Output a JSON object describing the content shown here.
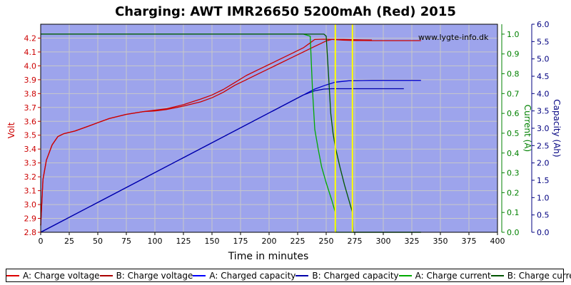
{
  "chart_data": {
    "type": "line",
    "title": "Charging: AWT IMR26650 5200mAh (Red) 2015",
    "watermark": "www.lygte-info.dk",
    "xlabel": "Time in minutes",
    "ylabel_left": "Volt",
    "ylabel_right1": "Current (A)",
    "ylabel_right2": "Capacity (Ah)",
    "xlim": [
      0,
      400
    ],
    "ylim_left": [
      2.8,
      4.3
    ],
    "ylim_right1": [
      0,
      1.05
    ],
    "ylim_right2": [
      0,
      6.0
    ],
    "x_ticks": [
      "0",
      "25",
      "50",
      "75",
      "100",
      "125",
      "150",
      "175",
      "200",
      "225",
      "250",
      "275",
      "300",
      "325",
      "350",
      "375",
      "400"
    ],
    "y_ticks_left": [
      "2.8",
      "2.9",
      "3.0",
      "3.1",
      "3.2",
      "3.3",
      "3.4",
      "3.5",
      "3.6",
      "3.7",
      "3.8",
      "3.9",
      "4.0",
      "4.1",
      "4.2"
    ],
    "y_ticks_right1": [
      "0.0",
      "0.1",
      "0.2",
      "0.3",
      "0.4",
      "0.5",
      "0.6",
      "0.7",
      "0.8",
      "0.9",
      "1.0"
    ],
    "y_ticks_right2": [
      "0.0",
      "0.5",
      "1.0",
      "1.5",
      "2.0",
      "2.5",
      "3.0",
      "3.5",
      "4.0",
      "4.5",
      "5.0",
      "5.5",
      "6.0"
    ],
    "grid": true,
    "legend_position": "bottom",
    "colors": {
      "background": "#9da4ec",
      "grid": "#c8c8c8",
      "left_axis": "#cc0000",
      "right1_axis": "#008000",
      "right2_axis": "#000080",
      "markers": "#ffff00"
    },
    "markers_x": [
      258,
      273
    ],
    "series": [
      {
        "name": "A: Charge voltage",
        "axis": "left",
        "color": "#cc0000",
        "x": [
          0,
          2,
          5,
          10,
          15,
          20,
          30,
          40,
          50,
          60,
          75,
          90,
          100,
          110,
          125,
          140,
          150,
          160,
          170,
          180,
          190,
          200,
          210,
          220,
          230,
          235,
          240,
          248,
          255,
          265,
          275,
          290,
          310,
          333
        ],
        "y": [
          2.85,
          3.18,
          3.32,
          3.43,
          3.49,
          3.51,
          3.53,
          3.56,
          3.59,
          3.62,
          3.65,
          3.67,
          3.68,
          3.69,
          3.72,
          3.76,
          3.79,
          3.83,
          3.88,
          3.93,
          3.97,
          4.01,
          4.05,
          4.09,
          4.13,
          4.16,
          4.19,
          4.192,
          4.19,
          4.185,
          4.183,
          4.182,
          4.182,
          4.182
        ]
      },
      {
        "name": "B: Charge voltage",
        "axis": "left",
        "color": "#cc0000",
        "x": [
          0,
          2,
          5,
          10,
          15,
          20,
          30,
          40,
          50,
          60,
          75,
          90,
          100,
          110,
          125,
          140,
          150,
          160,
          170,
          180,
          190,
          200,
          210,
          220,
          230,
          240,
          245,
          250,
          255,
          265,
          275,
          290
        ],
        "y": [
          2.85,
          3.18,
          3.32,
          3.43,
          3.49,
          3.51,
          3.53,
          3.56,
          3.59,
          3.62,
          3.65,
          3.67,
          3.675,
          3.685,
          3.71,
          3.74,
          3.77,
          3.81,
          3.86,
          3.9,
          3.94,
          3.98,
          4.02,
          4.06,
          4.1,
          4.14,
          4.16,
          4.18,
          4.19,
          4.19,
          4.188,
          4.186
        ]
      },
      {
        "name": "A: Charged capacity",
        "axis": "right2",
        "color": "#0000cc",
        "x": [
          0,
          230,
          240,
          250,
          258,
          270,
          290,
          333
        ],
        "y": [
          0.0,
          3.96,
          4.13,
          4.25,
          4.33,
          4.37,
          4.38,
          4.38
        ]
      },
      {
        "name": "B: Charged capacity",
        "axis": "right2",
        "color": "#0000aa",
        "x": [
          0,
          230,
          240,
          248,
          255,
          265,
          280,
          300,
          318
        ],
        "y": [
          0.0,
          3.96,
          4.08,
          4.13,
          4.14,
          4.14,
          4.14,
          4.14,
          4.14
        ]
      },
      {
        "name": "A: Charge current",
        "axis": "right1",
        "color": "#00aa00",
        "x": [
          0,
          230,
          236,
          238,
          240,
          243,
          246,
          250,
          255,
          258,
          258.5,
          260,
          300,
          333
        ],
        "y": [
          1.0,
          1.0,
          0.99,
          0.72,
          0.52,
          0.42,
          0.33,
          0.25,
          0.16,
          0.1,
          0.0,
          0.0,
          0.0,
          0.0
        ]
      },
      {
        "name": "B: Charge current",
        "axis": "right1",
        "color": "#005500",
        "x": [
          0,
          248,
          250,
          252,
          254,
          256,
          258,
          262,
          266,
          270,
          273,
          273.5,
          300,
          333
        ],
        "y": [
          1.0,
          1.0,
          0.99,
          0.8,
          0.6,
          0.5,
          0.43,
          0.33,
          0.24,
          0.16,
          0.1,
          0.0,
          0.0,
          0.0
        ]
      }
    ]
  },
  "legend": [
    {
      "label": "A: Charge voltage",
      "color": "#dd0000"
    },
    {
      "label": "B: Charge voltage",
      "color": "#aa0000"
    },
    {
      "label": "A: Charged capacity",
      "color": "#0000ff"
    },
    {
      "label": "B: Charged capacity",
      "color": "#0000aa"
    },
    {
      "label": "A: Charge current",
      "color": "#00aa00"
    },
    {
      "label": "B: Charge current",
      "color": "#005500"
    }
  ]
}
